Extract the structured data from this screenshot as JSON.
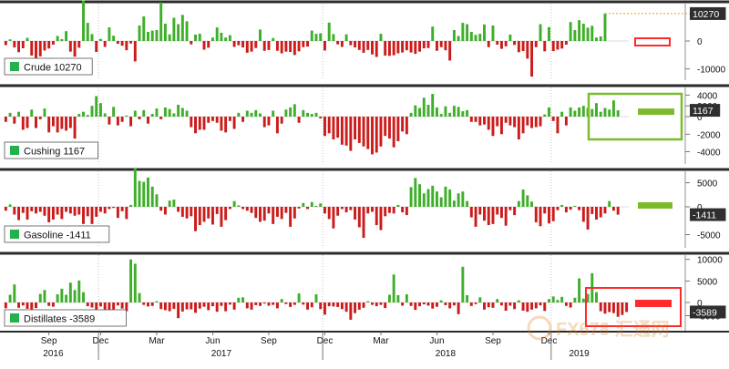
{
  "colors": {
    "positive": "#3fae2a",
    "negative": "#cc1b1b",
    "background": "#ffffff",
    "separator": "#2b2b2b",
    "grid": "#9a9a9a",
    "value_label_bg": "#3b3b3b",
    "latest_label_bg": "#2f2f2f",
    "highlight_green": "#7dbb2c",
    "highlight_red": "#ff2a2a",
    "legend_swatch": "#22b14c"
  },
  "chart_data": [
    {
      "type": "bar",
      "name": "crude",
      "legend": "Crude 10270",
      "latest_label": "10270",
      "ylim": [
        -14000,
        14000
      ],
      "yticks": [
        0,
        -10000
      ],
      "highlight": "red-outline-box",
      "values": [
        -1500,
        600,
        -2300,
        -4000,
        -2600,
        1200,
        -5200,
        -6400,
        -5500,
        -3400,
        -2700,
        -1300,
        1900,
        700,
        3700,
        -3800,
        -5600,
        -2400,
        15200,
        6800,
        2600,
        -3900,
        800,
        -2100,
        5100,
        2000,
        -1000,
        -1700,
        -3300,
        -900,
        -7300,
        5800,
        9200,
        3400,
        3900,
        4100,
        14500,
        6500,
        2500,
        8700,
        6300,
        9800,
        7400,
        -1200,
        2400,
        2700,
        -3100,
        -2400,
        1300,
        5100,
        3100,
        1300,
        2200,
        -2100,
        -1500,
        -2300,
        -4200,
        -3800,
        -2500,
        4300,
        -3500,
        -3200,
        1100,
        -3500,
        -4400,
        -3800,
        -3900,
        -5000,
        -3700,
        -2200,
        -2000,
        3900,
        2700,
        2900,
        -3400,
        6900,
        2600,
        -1200,
        -2100,
        2500,
        -1500,
        -2300,
        -3200,
        -4200,
        -3200,
        -4800,
        -5700,
        2700,
        -5200,
        -5300,
        -5100,
        -4400,
        -4100,
        -3300,
        -4100,
        -4600,
        -3800,
        -2600,
        -2500,
        5400,
        -3500,
        -2200,
        -3300,
        -7000,
        4100,
        1900,
        6800,
        6300,
        3400,
        2300,
        2700,
        6200,
        -2200,
        5800,
        -1300,
        -2800,
        -1900,
        2400,
        -1400,
        -4000,
        -3600,
        -6300,
        -12700,
        -2200,
        6300,
        -3700,
        5200,
        -3600,
        -3100,
        -2700,
        -1300,
        7100,
        4100,
        7800,
        6500,
        5000,
        5700,
        1300,
        1700,
        10270
      ]
    },
    {
      "type": "bar",
      "name": "cushing",
      "legend": "Cushing 1167",
      "latest_label": "1167",
      "ylim": [
        -5400,
        5400
      ],
      "yticks": [
        4000,
        2000,
        0,
        -2000,
        -4000
      ],
      "highlight": "green-outline-box",
      "values": [
        -600,
        700,
        -800,
        900,
        -1500,
        -1300,
        1300,
        -1300,
        -300,
        1500,
        -1800,
        -1100,
        -1800,
        -1400,
        -1600,
        -1300,
        -2500,
        500,
        900,
        300,
        2000,
        3800,
        2500,
        600,
        -900,
        1800,
        -1000,
        -600,
        200,
        -1100,
        1100,
        -300,
        1200,
        -800,
        500,
        1500,
        -300,
        1700,
        1400,
        600,
        2200,
        1600,
        1100,
        -1200,
        -1900,
        -1500,
        -1500,
        -700,
        -500,
        -700,
        -1600,
        -1800,
        -500,
        -1400,
        700,
        -600,
        1100,
        700,
        1200,
        600,
        -1200,
        -1000,
        1100,
        -1900,
        -800,
        1300,
        1700,
        2300,
        -700,
        1200,
        700,
        500,
        700,
        -200,
        -2200,
        -1900,
        -2600,
        -2400,
        -3200,
        -3300,
        -3900,
        -2600,
        -3000,
        -3400,
        -3700,
        -4300,
        -4100,
        -3400,
        -2200,
        -2500,
        -3500,
        -2800,
        -1700,
        -2000,
        700,
        2100,
        1600,
        3500,
        2200,
        4200,
        1700,
        500,
        1900,
        700,
        2000,
        1800,
        1000,
        1200,
        -600,
        -600,
        -1000,
        -900,
        -1500,
        -2200,
        -1100,
        -2000,
        -700,
        -1000,
        -1200,
        -2600,
        -1900,
        -1000,
        -1300,
        -1200,
        -1100,
        400,
        1700,
        -500,
        -1900,
        900,
        -1000,
        1700,
        1100,
        1700,
        2000,
        1600,
        1400,
        2500,
        900,
        1600,
        1300,
        3000,
        1167
      ]
    },
    {
      "type": "bar",
      "name": "gasoline",
      "legend": "Gasoline -1411",
      "latest_label": "-1411",
      "ylim": [
        -7400,
        7400
      ],
      "yticks": [
        5000,
        0,
        -5000
      ],
      "highlight": "green-bar",
      "values": [
        -700,
        500,
        -1400,
        -2400,
        -1100,
        -2300,
        -800,
        -1200,
        -900,
        -1600,
        -2800,
        -2300,
        -1400,
        -2200,
        -900,
        -1200,
        -1600,
        -1400,
        -3100,
        -1700,
        -3100,
        -1800,
        -900,
        -1200,
        -400,
        -200,
        -2000,
        -800,
        -2200,
        400,
        8100,
        5400,
        5200,
        6100,
        4200,
        2600,
        -700,
        -1400,
        1300,
        1500,
        -900,
        -1800,
        -2100,
        -1700,
        -4400,
        -3300,
        -2700,
        -2100,
        -3200,
        -1300,
        -3600,
        -2400,
        -400,
        1200,
        300,
        -400,
        -700,
        -1100,
        -2000,
        -2700,
        -2500,
        -1200,
        -3100,
        -1800,
        -2200,
        -1100,
        -3600,
        -2100,
        -300,
        800,
        -400,
        1000,
        200,
        700,
        -1200,
        -2200,
        -3900,
        -1600,
        -400,
        -1000,
        -600,
        -2300,
        -3700,
        -5600,
        -1200,
        -900,
        -3300,
        -4200,
        -1700,
        -1100,
        -1200,
        400,
        -1000,
        -1500,
        4100,
        6000,
        4700,
        2800,
        3700,
        4400,
        3200,
        2000,
        4200,
        3600,
        1300,
        2800,
        3200,
        1200,
        -1900,
        -3600,
        -1400,
        -2500,
        -3300,
        -3100,
        -1400,
        -2000,
        -3400,
        -600,
        -1500,
        1200,
        3600,
        2400,
        1100,
        -2800,
        -3500,
        -1200,
        -3000,
        -2600,
        -600,
        400,
        -1000,
        -500,
        200,
        -600,
        -2700,
        -4100,
        -1300,
        -2300,
        -1900,
        -1200,
        1200,
        -700,
        -1411
      ]
    },
    {
      "type": "bar",
      "name": "distillates",
      "legend": "Distillates -3589",
      "latest_label": "-3589",
      "ylim": [
        -11000,
        11000
      ],
      "yticks": [
        10000,
        5000,
        0,
        -5000
      ],
      "highlight": "red-bar-with-red-box",
      "values": [
        -2200,
        1800,
        4200,
        -2000,
        -1100,
        -2400,
        -2700,
        -2100,
        2000,
        2900,
        -1300,
        -1600,
        1900,
        3200,
        1800,
        4600,
        2900,
        5100,
        2400,
        -1400,
        -1900,
        -2700,
        -1500,
        -2900,
        -4500,
        -2600,
        -1100,
        -2300,
        -3300,
        10000,
        9000,
        2200,
        -900,
        -1500,
        -1300,
        300,
        -2500,
        -2900,
        -3300,
        -2400,
        -5900,
        -3400,
        -2600,
        -2600,
        -3900,
        -2300,
        -1600,
        -2900,
        -1400,
        -3500,
        -1300,
        -3300,
        -800,
        -2700,
        1100,
        1200,
        -2200,
        -2700,
        -1000,
        -1300,
        -400,
        -1200,
        -900,
        -2200,
        800,
        -600,
        -1700,
        -900,
        2100,
        -800,
        -2700,
        -1800,
        1900,
        -2500,
        -4600,
        -1400,
        -1500,
        -1700,
        -2500,
        -3500,
        -6500,
        -4000,
        -2700,
        -2000,
        300,
        -900,
        -1400,
        -900,
        -2100,
        1800,
        6500,
        1700,
        -1200,
        1900,
        -1300,
        -2800,
        -1400,
        -700,
        -1200,
        -2300,
        -1600,
        500,
        -1000,
        -2200,
        -1100,
        -4400,
        8300,
        1700,
        -1300,
        -600,
        1200,
        -2700,
        -1800,
        -2000,
        800,
        -1100,
        -3100,
        -1200,
        -2500,
        500,
        -3100,
        -3500,
        -2700,
        -2200,
        -1100,
        -3200,
        800,
        1400,
        600,
        1300,
        -1300,
        -1900,
        1100,
        5600,
        900,
        2000,
        6800,
        2400,
        -3300,
        -4200,
        -3600,
        -4000,
        -5400,
        -4700,
        -3589
      ]
    }
  ],
  "x_axis": {
    "month_labels": [
      {
        "label": "Sep",
        "index": 10
      },
      {
        "label": "Dec",
        "index": 22
      },
      {
        "label": "Mar",
        "index": 35
      },
      {
        "label": "Jun",
        "index": 48
      },
      {
        "label": "Sep",
        "index": 61
      },
      {
        "label": "Dec",
        "index": 74
      },
      {
        "label": "Mar",
        "index": 87
      },
      {
        "label": "Jun",
        "index": 100
      },
      {
        "label": "Sep",
        "index": 113
      },
      {
        "label": "Dec",
        "index": 126
      }
    ],
    "year_labels": [
      {
        "label": "2016",
        "index": 11
      },
      {
        "label": "2017",
        "index": 50
      },
      {
        "label": "2018",
        "index": 102
      },
      {
        "label": "2019",
        "index": 133
      }
    ],
    "year_boundaries": [
      22,
      74,
      127
    ]
  },
  "watermark": "FX678 汇通网"
}
